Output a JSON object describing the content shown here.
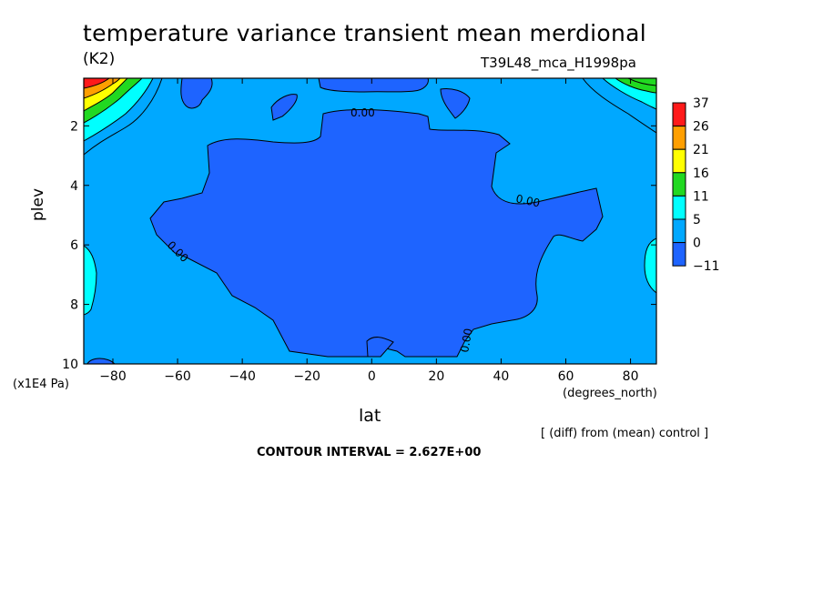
{
  "chart_data": {
    "type": "heatmap",
    "title": "temperature variance transient mean merdional",
    "units": "(K2)",
    "run_label": "T39L48_mca_H1998pa",
    "xlabel": "lat",
    "x_unit": "(degrees_north)",
    "ylabel": "plev",
    "y_unit": "(x1E4 Pa)",
    "x_ticks": [
      -80,
      -60,
      -40,
      -20,
      0,
      20,
      40,
      60,
      80
    ],
    "x_tick_labels": [
      "−80",
      "−60",
      "−40",
      "−20",
      "0",
      "20",
      "40",
      "60",
      "80"
    ],
    "xlim": [
      -89,
      88
    ],
    "y_ticks": [
      2,
      4,
      6,
      8,
      10
    ],
    "y_tick_labels": [
      "2",
      "4",
      "6",
      "8",
      "10"
    ],
    "ylim": [
      0.4,
      10
    ],
    "y_reversed": true,
    "colorbar": {
      "levels": [
        "37",
        "26",
        "21",
        "16",
        "11",
        "5",
        "0",
        "−11"
      ],
      "colors": [
        "#ff1a1a",
        "#ff9f00",
        "#ffff00",
        "#21d921",
        "#00ffff",
        "#00a8ff",
        "#1e64ff"
      ]
    },
    "contour_labels": [
      "0.00",
      "0.00",
      "0.00",
      "0.00"
    ],
    "regions": {
      "background_band": {
        "range": [
          0,
          5
        ],
        "color": "#00a8ff"
      },
      "central_negative": {
        "range": [
          -11,
          0
        ],
        "lat_range": [
          -67,
          72
        ],
        "plev_range": [
          1.4,
          10
        ]
      },
      "polar_cap_south_upper": {
        "max_band": "37",
        "lat": [
          -89,
          -73
        ],
        "plev": [
          0.4,
          2.2
        ]
      },
      "polar_cap_north_upper": {
        "max_band": "11",
        "lat": [
          74,
          88
        ],
        "plev": [
          0.4,
          1.6
        ]
      }
    },
    "footer_note": "[ (diff) from (mean) control ]",
    "contour_interval": "CONTOUR INTERVAL = 2.627E+00"
  }
}
